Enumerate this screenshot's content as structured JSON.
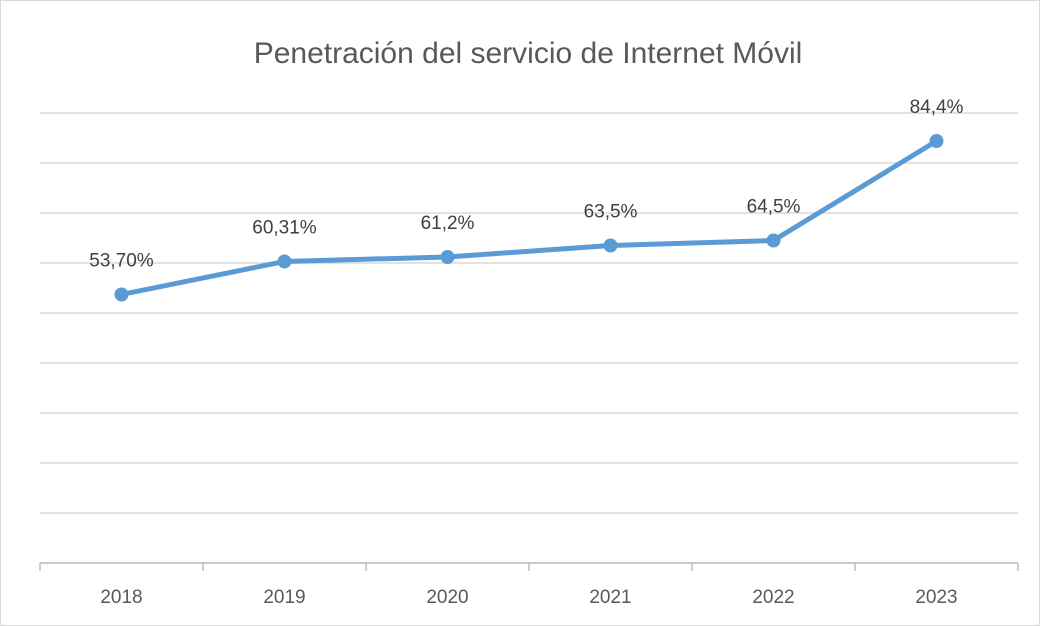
{
  "chart_data": {
    "type": "line",
    "title": "Penetración del servicio de Internet Móvil",
    "categories": [
      "2018",
      "2019",
      "2020",
      "2021",
      "2022",
      "2023"
    ],
    "values": [
      53.7,
      60.31,
      61.2,
      63.5,
      64.5,
      84.4
    ],
    "value_labels": [
      "53,70%",
      "60,31%",
      "61,2%",
      "63,5%",
      "64,5%",
      "84,4%"
    ],
    "color": "#5b9bd5",
    "ylim": [
      0,
      90
    ],
    "yticks": [
      0,
      10,
      20,
      30,
      40,
      50,
      60,
      70,
      80,
      90
    ],
    "grid": true
  }
}
